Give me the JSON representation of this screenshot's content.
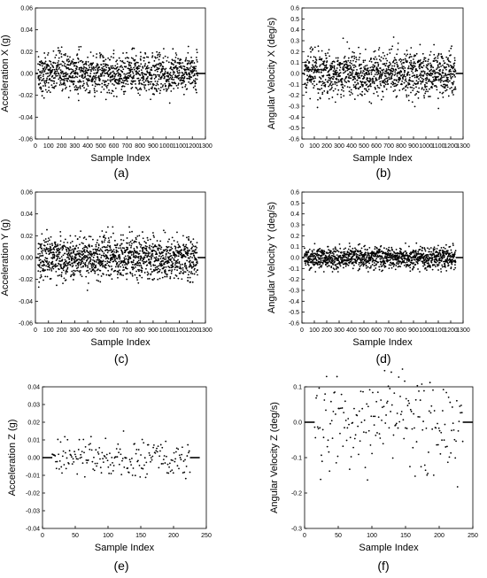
{
  "figure": {
    "colors": {
      "marker": "#000000",
      "axis": "#000000",
      "background": "#ffffff"
    }
  },
  "chart_data": [
    {
      "type": "scatter",
      "panel_label": "(a)",
      "xlabel": "Sample Index",
      "ylabel": "Acceleration X (g)",
      "xlim": [
        0,
        1300
      ],
      "ylim": [
        -0.06,
        0.06
      ],
      "xticks": [
        0,
        100,
        200,
        300,
        400,
        500,
        600,
        700,
        800,
        900,
        1000,
        1100,
        1200,
        1300
      ],
      "yticks": [
        -0.06,
        -0.04,
        -0.02,
        0.0,
        0.02,
        0.04,
        0.06
      ],
      "ytick_labels": [
        "-0.06",
        "-0.04",
        "-0.02",
        "0.00",
        "0.02",
        "0.04",
        "0.06"
      ],
      "n_points": 1250,
      "data_x_range": [
        20,
        1240
      ],
      "spread": 0.009,
      "y_min_observed": -0.03,
      "y_max_observed": 0.034,
      "baseline_segments": [
        [
          0,
          20,
          0.0
        ],
        [
          1240,
          1300,
          0.0
        ]
      ],
      "grid": false,
      "legend": "none"
    },
    {
      "type": "scatter",
      "panel_label": "(b)",
      "xlabel": "Sample Index",
      "ylabel": "Angular Velocity X (deg/s)",
      "xlim": [
        0,
        1300
      ],
      "ylim": [
        -0.6,
        0.6
      ],
      "xticks": [
        0,
        100,
        200,
        300,
        400,
        500,
        600,
        700,
        800,
        900,
        1000,
        1100,
        1200,
        1300
      ],
      "yticks": [
        -0.6,
        -0.5,
        -0.4,
        -0.3,
        -0.2,
        -0.1,
        0.0,
        0.1,
        0.2,
        0.3,
        0.4,
        0.5,
        0.6
      ],
      "ytick_labels": [
        "-0.6",
        "-0.5",
        "-0.4",
        "-0.3",
        "-0.2",
        "-0.1",
        "0.0",
        "0.1",
        "0.2",
        "0.3",
        "0.4",
        "0.5",
        "0.6"
      ],
      "n_points": 1250,
      "data_x_range": [
        20,
        1240
      ],
      "spread": 0.1,
      "y_min_observed": -0.32,
      "y_max_observed": 0.35,
      "baseline_segments": [
        [
          0,
          20,
          0.0
        ],
        [
          1240,
          1300,
          0.0
        ]
      ],
      "grid": false,
      "legend": "none"
    },
    {
      "type": "scatter",
      "panel_label": "(c)",
      "xlabel": "Sample Index",
      "ylabel": "Acceleration Y (g)",
      "xlim": [
        0,
        1300
      ],
      "ylim": [
        -0.06,
        0.06
      ],
      "xticks": [
        0,
        100,
        200,
        300,
        400,
        500,
        600,
        700,
        800,
        900,
        1000,
        1100,
        1200,
        1300
      ],
      "yticks": [
        -0.06,
        -0.04,
        -0.02,
        0.0,
        0.02,
        0.04,
        0.06
      ],
      "ytick_labels": [
        "-0.06",
        "-0.04",
        "-0.02",
        "0.00",
        "0.02",
        "0.04",
        "0.06"
      ],
      "n_points": 1400,
      "data_x_range": [
        20,
        1240
      ],
      "spread": 0.0095,
      "y_min_observed": -0.03,
      "y_max_observed": 0.035,
      "baseline_segments": [
        [
          0,
          20,
          0.0
        ],
        [
          1240,
          1300,
          0.0
        ]
      ],
      "grid": false,
      "legend": "none"
    },
    {
      "type": "scatter",
      "panel_label": "(d)",
      "xlabel": "Sample Index",
      "ylabel": "Angular Velocity Y (deg/s)",
      "xlim": [
        0,
        1300
      ],
      "ylim": [
        -0.6,
        0.6
      ],
      "xticks": [
        0,
        100,
        200,
        300,
        400,
        500,
        600,
        700,
        800,
        900,
        1000,
        1100,
        1200,
        1300
      ],
      "yticks": [
        -0.6,
        -0.5,
        -0.4,
        -0.3,
        -0.2,
        -0.1,
        0.0,
        0.1,
        0.2,
        0.3,
        0.4,
        0.5,
        0.6
      ],
      "ytick_labels": [
        "-0.6",
        "-0.5",
        "-0.4",
        "-0.3",
        "-0.2",
        "-0.1",
        "0.0",
        "0.1",
        "0.2",
        "0.3",
        "0.4",
        "0.5",
        "0.6"
      ],
      "n_points": 1250,
      "data_x_range": [
        20,
        1240
      ],
      "spread": 0.05,
      "y_min_observed": -0.13,
      "y_max_observed": 0.15,
      "baseline_segments": [
        [
          0,
          20,
          0.0
        ],
        [
          1240,
          1300,
          0.0
        ]
      ],
      "grid": false,
      "legend": "none"
    },
    {
      "type": "scatter",
      "panel_label": "(e)",
      "xlabel": "Sample Index",
      "ylabel": "Acceleration Z (g)",
      "xlim": [
        0,
        250
      ],
      "ylim": [
        -0.04,
        0.04
      ],
      "xticks": [
        0,
        50,
        100,
        150,
        200,
        250
      ],
      "yticks": [
        -0.04,
        -0.03,
        -0.02,
        -0.01,
        0.0,
        0.01,
        0.02,
        0.03,
        0.04
      ],
      "ytick_labels": [
        "-0.04",
        "-0.03",
        "-0.02",
        "-0.01",
        "0.00",
        "0.01",
        "0.02",
        "0.03",
        "0.04"
      ],
      "n_points": 200,
      "data_x_range": [
        15,
        225
      ],
      "spread": 0.0055,
      "y_min_observed": -0.013,
      "y_max_observed": 0.015,
      "baseline_segments": [
        [
          0,
          15,
          0.0
        ],
        [
          225,
          240,
          0.0
        ]
      ],
      "grid": false,
      "legend": "none"
    },
    {
      "type": "scatter",
      "panel_label": "(f)",
      "xlabel": "Sample Index",
      "ylabel": "Angular Velocity Z (deg/s)",
      "xlim": [
        0,
        250
      ],
      "ylim": [
        -0.3,
        0.1
      ],
      "xticks": [
        0,
        50,
        100,
        150,
        200,
        250
      ],
      "yticks": [
        -0.3,
        -0.2,
        -0.1,
        0.0,
        0.1
      ],
      "ytick_labels": [
        "-0.3",
        "-0.2",
        "-0.1",
        "0.0",
        "0.1"
      ],
      "n_points": 200,
      "data_x_range": [
        15,
        235
      ],
      "spread": 0.07,
      "y_min_observed": -0.22,
      "y_max_observed": 0.15,
      "baseline_segments": [
        [
          0,
          15,
          0.0
        ],
        [
          235,
          250,
          0.0
        ]
      ],
      "grid": false,
      "legend": "none"
    }
  ]
}
